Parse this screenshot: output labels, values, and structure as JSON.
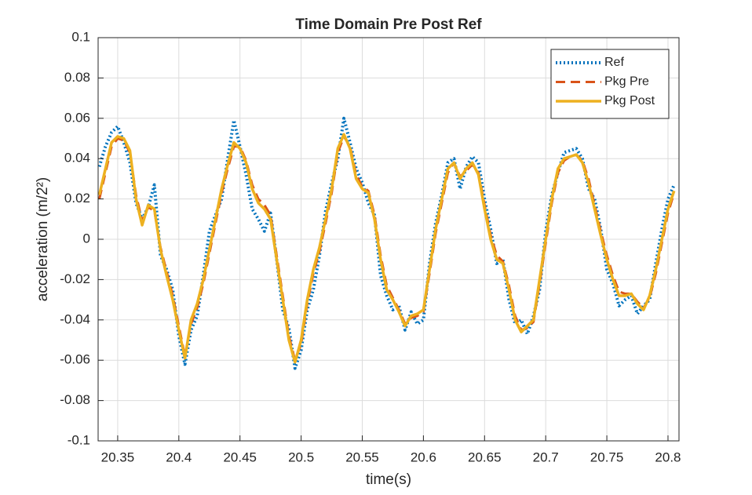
{
  "chart_data": {
    "type": "line",
    "title": "Time Domain Pre Post Ref",
    "xlabel": "time(s)",
    "ylabel": "acceleration (m/2²)",
    "x": [
      20.335,
      20.34,
      20.345,
      20.35,
      20.355,
      20.36,
      20.365,
      20.37,
      20.375,
      20.38,
      20.385,
      20.39,
      20.395,
      20.4,
      20.405,
      20.41,
      20.415,
      20.42,
      20.425,
      20.43,
      20.435,
      20.44,
      20.445,
      20.45,
      20.455,
      20.46,
      20.465,
      20.47,
      20.475,
      20.48,
      20.485,
      20.49,
      20.495,
      20.5,
      20.505,
      20.51,
      20.515,
      20.52,
      20.525,
      20.53,
      20.535,
      20.54,
      20.545,
      20.55,
      20.555,
      20.56,
      20.565,
      20.57,
      20.575,
      20.58,
      20.585,
      20.59,
      20.595,
      20.6,
      20.605,
      20.61,
      20.615,
      20.62,
      20.625,
      20.63,
      20.635,
      20.64,
      20.645,
      20.65,
      20.655,
      20.66,
      20.665,
      20.67,
      20.675,
      20.68,
      20.685,
      20.69,
      20.695,
      20.7,
      20.705,
      20.71,
      20.715,
      20.72,
      20.725,
      20.73,
      20.735,
      20.74,
      20.745,
      20.75,
      20.755,
      20.76,
      20.765,
      20.77,
      20.775,
      20.78,
      20.785,
      20.79,
      20.795,
      20.8,
      20.805
    ],
    "series": [
      {
        "name": "Ref",
        "color": "#0072BD",
        "style": "dotted",
        "values": [
          0.036,
          0.046,
          0.053,
          0.056,
          0.048,
          0.038,
          0.018,
          0.01,
          0.016,
          0.027,
          -0.008,
          -0.015,
          -0.025,
          -0.048,
          -0.062,
          -0.045,
          -0.038,
          -0.018,
          0.004,
          0.012,
          0.02,
          0.04,
          0.059,
          0.046,
          0.032,
          0.015,
          0.01,
          0.004,
          0.013,
          -0.01,
          -0.035,
          -0.044,
          -0.064,
          -0.055,
          -0.035,
          -0.025,
          -0.008,
          0.014,
          0.028,
          0.04,
          0.06,
          0.048,
          0.035,
          0.028,
          0.018,
          0.012,
          -0.018,
          -0.028,
          -0.035,
          -0.033,
          -0.045,
          -0.036,
          -0.042,
          -0.04,
          -0.012,
          0.008,
          0.022,
          0.038,
          0.04,
          0.025,
          0.036,
          0.041,
          0.038,
          0.02,
          0.005,
          -0.012,
          -0.01,
          -0.03,
          -0.042,
          -0.04,
          -0.047,
          -0.038,
          -0.025,
          0.004,
          0.022,
          0.033,
          0.043,
          0.044,
          0.045,
          0.04,
          0.025,
          0.02,
          0.005,
          -0.015,
          -0.022,
          -0.033,
          -0.03,
          -0.028,
          -0.037,
          -0.033,
          -0.03,
          -0.012,
          0.005,
          0.02,
          0.027
        ]
      },
      {
        "name": "Pkg Pre",
        "color": "#D95319",
        "style": "dashed",
        "values": [
          0.02,
          0.033,
          0.046,
          0.05,
          0.049,
          0.043,
          0.022,
          0.009,
          0.016,
          0.014,
          -0.004,
          -0.016,
          -0.028,
          -0.043,
          -0.058,
          -0.042,
          -0.034,
          -0.022,
          -0.007,
          0.008,
          0.023,
          0.035,
          0.046,
          0.046,
          0.039,
          0.027,
          0.02,
          0.017,
          0.012,
          -0.008,
          -0.028,
          -0.048,
          -0.06,
          -0.052,
          -0.032,
          -0.017,
          -0.006,
          0.008,
          0.023,
          0.043,
          0.051,
          0.046,
          0.032,
          0.026,
          0.024,
          0.012,
          -0.008,
          -0.023,
          -0.029,
          -0.035,
          -0.042,
          -0.039,
          -0.038,
          -0.036,
          -0.017,
          0.003,
          0.018,
          0.033,
          0.038,
          0.031,
          0.034,
          0.037,
          0.033,
          0.017,
          0.002,
          -0.008,
          -0.011,
          -0.023,
          -0.038,
          -0.045,
          -0.044,
          -0.041,
          -0.022,
          -0.002,
          0.018,
          0.033,
          0.039,
          0.041,
          0.042,
          0.039,
          0.03,
          0.017,
          0.004,
          -0.008,
          -0.018,
          -0.026,
          -0.027,
          -0.027,
          -0.031,
          -0.034,
          -0.029,
          -0.017,
          -0.002,
          0.013,
          0.023
        ]
      },
      {
        "name": "Pkg Post",
        "color": "#EDB120",
        "style": "solid",
        "values": [
          0.022,
          0.035,
          0.048,
          0.051,
          0.05,
          0.044,
          0.02,
          0.007,
          0.017,
          0.015,
          -0.005,
          -0.018,
          -0.03,
          -0.045,
          -0.059,
          -0.04,
          -0.032,
          -0.02,
          -0.005,
          0.01,
          0.025,
          0.037,
          0.048,
          0.045,
          0.038,
          0.025,
          0.018,
          0.015,
          0.01,
          -0.01,
          -0.03,
          -0.05,
          -0.061,
          -0.05,
          -0.03,
          -0.015,
          -0.004,
          0.01,
          0.025,
          0.045,
          0.052,
          0.045,
          0.03,
          0.025,
          0.023,
          0.01,
          -0.01,
          -0.025,
          -0.03,
          -0.036,
          -0.043,
          -0.038,
          -0.037,
          -0.035,
          -0.015,
          0.005,
          0.02,
          0.035,
          0.038,
          0.03,
          0.035,
          0.038,
          0.032,
          0.015,
          0,
          -0.01,
          -0.012,
          -0.025,
          -0.04,
          -0.046,
          -0.043,
          -0.04,
          -0.02,
          0,
          0.02,
          0.035,
          0.04,
          0.041,
          0.042,
          0.038,
          0.028,
          0.015,
          0.002,
          -0.01,
          -0.02,
          -0.028,
          -0.028,
          -0.027,
          -0.032,
          -0.035,
          -0.028,
          -0.015,
          0,
          0.015,
          0.024
        ]
      }
    ],
    "xlim": [
      20.334,
      20.809
    ],
    "ylim": [
      -0.1,
      0.1
    ],
    "xticks": [
      20.35,
      20.4,
      20.45,
      20.5,
      20.55,
      20.6,
      20.65,
      20.7,
      20.75,
      20.8
    ],
    "yticks": [
      -0.1,
      -0.08,
      -0.06,
      -0.04,
      -0.02,
      0,
      0.02,
      0.04,
      0.06,
      0.08,
      0.1
    ],
    "grid": true,
    "legend": "northeast"
  }
}
